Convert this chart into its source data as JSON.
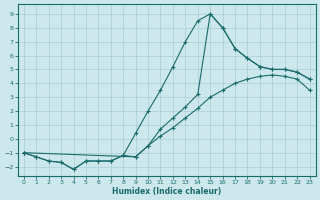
{
  "xlabel": "Humidex (Indice chaleur)",
  "bg_color": "#cce8ec",
  "line_color": "#1a6b6b",
  "grid_color": "#aacdd4",
  "xlim": [
    -0.5,
    23.5
  ],
  "ylim": [
    -2.7,
    9.7
  ],
  "xticks": [
    0,
    1,
    2,
    3,
    4,
    5,
    6,
    7,
    8,
    9,
    10,
    11,
    12,
    13,
    14,
    15,
    16,
    17,
    18,
    19,
    20,
    21,
    22,
    23
  ],
  "yticks": [
    -2,
    -1,
    0,
    1,
    2,
    3,
    4,
    5,
    6,
    7,
    8,
    9
  ],
  "line1_x": [
    0,
    1,
    2,
    3,
    4,
    5,
    6,
    7,
    8,
    9,
    10,
    11,
    12,
    13,
    14,
    15,
    16,
    17,
    18,
    19,
    20,
    21,
    22,
    23
  ],
  "line1_y": [
    -1,
    -1.3,
    -1.6,
    -1.7,
    -2.2,
    -1.6,
    -1.6,
    -1.6,
    -1.2,
    -1.3,
    -0.5,
    0.2,
    0.8,
    1.5,
    2.2,
    3.0,
    3.5,
    4.0,
    4.3,
    4.5,
    4.6,
    4.5,
    4.3,
    3.5
  ],
  "line2_x": [
    0,
    1,
    2,
    3,
    4,
    5,
    6,
    7,
    8,
    9,
    10,
    11,
    12,
    13,
    14,
    15,
    16,
    17,
    18,
    19,
    20,
    21,
    22,
    23
  ],
  "line2_y": [
    -1,
    -1.3,
    -1.6,
    -1.7,
    -2.2,
    -1.6,
    -1.6,
    -1.6,
    -1.2,
    0.4,
    2.0,
    3.5,
    5.2,
    7.0,
    8.5,
    9.0,
    8.0,
    6.5,
    5.8,
    5.2,
    5.0,
    5.0,
    4.8,
    4.3
  ],
  "line3_x": [
    0,
    9,
    10,
    11,
    12,
    13,
    14,
    15,
    16,
    17,
    18,
    19,
    20,
    21,
    22,
    23
  ],
  "line3_y": [
    -1,
    -1.3,
    -0.5,
    0.7,
    1.5,
    2.3,
    3.2,
    9.0,
    8.0,
    6.5,
    5.8,
    5.2,
    5.0,
    5.0,
    4.8,
    4.3
  ]
}
